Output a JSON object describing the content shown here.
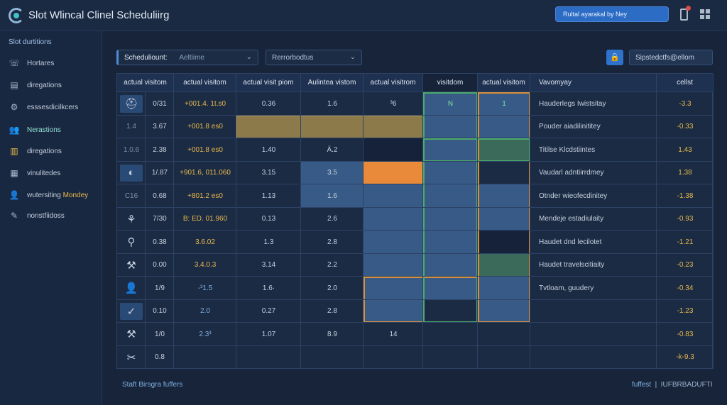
{
  "app": {
    "title": "Slot Wlincal Clinel Scheduliirg",
    "search_text": "Rultal ayarakal by Ney"
  },
  "sidebar": {
    "heading": "Slot durtitions",
    "items": [
      {
        "label": "Hortares",
        "icon": "phone-icon"
      },
      {
        "label": "diregations",
        "icon": "document-icon"
      },
      {
        "label": "esssesdicilkcers",
        "icon": "settings-icon"
      },
      {
        "label": "Nerastions",
        "icon": "users-icon"
      },
      {
        "label": "diregations",
        "icon": "chart-icon"
      },
      {
        "label": "vinulitedes",
        "icon": "building-icon"
      },
      {
        "label": "wutersiting",
        "accent": "Mondey",
        "icon": "user-icon"
      },
      {
        "label": "nonstfiidoss",
        "icon": "pencil-icon"
      }
    ]
  },
  "filters": {
    "first_label": "Scheduliount:",
    "first_value": "Aeltiime",
    "second_value": "Rerrorbodtus",
    "action_label": "Sipstedctfs@ellom"
  },
  "table": {
    "headers": [
      "actual visitom",
      "actual visitom",
      "actual visit piom",
      "Aulintea vistom",
      "actual visitrom",
      "visitdom",
      "actual visitom",
      "Vavomyay",
      "cellst"
    ],
    "rows": [
      {
        "icon": "medical-bag-icon",
        "time": "0/31",
        "ampm": "+001.4. 1t.s0",
        "c3": "0.36",
        "c4": "1.6",
        "c5": "³6",
        "c6": "N",
        "c7": "1",
        "desc": "Hauderlegs Iwistsitay",
        "delta": "-3.3"
      },
      {
        "icon": "",
        "time": "3.67",
        "pre": "1.4",
        "ampm": "+001.8 es0",
        "c3": "",
        "c4": "",
        "c5": "",
        "c6": "",
        "c7": "",
        "desc": "Pouder aiadilinititey",
        "delta": "-0.33"
      },
      {
        "icon": "",
        "time": "2.38",
        "pre": "1.0.6",
        "ampm": "+001.8 es0",
        "c3": "1.40",
        "c4": "Ä.2",
        "c5": "",
        "c6": "",
        "c7": "",
        "desc": "Titilse Klcdstiintes",
        "delta": "1.43"
      },
      {
        "icon": "bandage-icon",
        "time": "1/.87",
        "ampm": "+901.6, 011.060",
        "c3": "3.15",
        "c4": "3.5",
        "c5": "",
        "c6": "",
        "c7": "",
        "desc": "Vaudarl adntiirrdmey",
        "delta": "1.38"
      },
      {
        "icon": "",
        "time": "0.68",
        "pre": "C16",
        "ampm": "+801.2 es0",
        "c3": "1.13",
        "c4": "1.6",
        "c5": "",
        "c6": "",
        "c7": "",
        "desc": "Otnder wieofecdinitey",
        "delta": "-1.38"
      },
      {
        "icon": "network-icon",
        "time": "7/30",
        "ampm": "B: ED. 01.960",
        "c3": "0.13",
        "c4": "2.6",
        "c5": "",
        "c6": "",
        "c7": "",
        "desc": "Mendeje estadiulaity",
        "delta": "-0.93"
      },
      {
        "icon": "syringe-icon",
        "time": "0.38",
        "ampm": "3.6.02",
        "c3": "1.3",
        "c4": "2.8",
        "c5": "",
        "c6": "",
        "c7": "",
        "desc": "Haudet dnd lecilotet",
        "delta": "-1.21"
      },
      {
        "icon": "tools-icon",
        "time": "0.00",
        "ampm": "3.4.0.3",
        "c3": "3.14",
        "c4": "2.2",
        "c5": "",
        "c6": "",
        "c7": "",
        "desc": "Haudet travelscitiaity",
        "delta": "-0.23"
      },
      {
        "icon": "person-icon",
        "time": "1/9",
        "ampm": "-³1.5",
        "c3": "1.6·",
        "c4": "2.0",
        "c5": "",
        "c6": "",
        "c7": "",
        "desc": "Tvtloam, guudery",
        "delta": "-0.34"
      },
      {
        "icon": "check-icon",
        "time": "0.10",
        "ampm": "2.0",
        "c3": "0.27",
        "c4": "2.8",
        "c5": "",
        "c6": "",
        "c7": "",
        "desc": "",
        "delta": "-1.23"
      },
      {
        "icon": "wrench-icon",
        "time": "1/0",
        "ampm": "2.3³",
        "c3": "1.07",
        "c4": "8.9",
        "c5": "14",
        "c6": "",
        "c7": "",
        "desc": "",
        "delta": "-0.83"
      },
      {
        "icon": "scissors-icon",
        "time": "0.8",
        "ampm": "",
        "c3": "",
        "c4": "",
        "c5": "",
        "c6": "",
        "c7": "",
        "desc": "",
        "delta": "-k-9.3"
      }
    ]
  },
  "footer": {
    "left": "Staft Birsgra fuffers",
    "right_accent": "fuffest",
    "right": "IUFBRBADUFTI"
  },
  "colors": {
    "accent_blue": "#2f72cc",
    "accent_orange": "#e88a3a",
    "accent_green": "#4caa6a",
    "accent_tan": "#8c7a4a",
    "delta_text": "#e8b84a"
  }
}
